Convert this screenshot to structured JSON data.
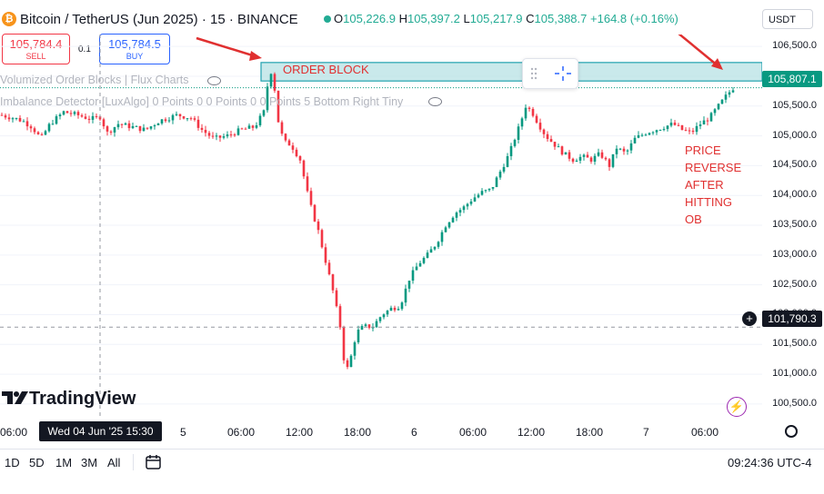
{
  "header": {
    "symbol": "Bitcoin / TetherUS (Jun 2025) · 15 · BINANCE",
    "coin_glyph": "₿",
    "ohlc": [
      {
        "k": "O",
        "v": "105,226.9"
      },
      {
        "k": "H",
        "v": "105,397.2"
      },
      {
        "k": "L",
        "v": "105,217.9"
      },
      {
        "k": "C",
        "v": "105,388.7"
      }
    ],
    "change": "+164.8 (+0.16%)",
    "currency": "USDT"
  },
  "trade": {
    "sell_price": "105,784.4",
    "sell_label": "SELL",
    "spread": "0.1",
    "buy_price": "105,784.5",
    "buy_label": "BUY"
  },
  "indicators": [
    {
      "label": "Volumized Order Blocks | Flux Charts"
    },
    {
      "label": "Imbalance Detector [LuxAlgo] 0 Points 0 0 Points 0 0 Points 5 Bottom Right Tiny"
    }
  ],
  "annotations": {
    "order_block": "ORDER BLOCK",
    "note": "PRICE\nREVERSE\nAFTER\nHITTING\nOB"
  },
  "price_scale": {
    "ticks": [
      "106,500.0",
      "106,000.0",
      "105,500.0",
      "105,000.0",
      "104,500.0",
      "104,000.0",
      "103,500.0",
      "103,000.0",
      "102,500.0",
      "102,000.0",
      "101,500.0",
      "101,000.0",
      "100,500.0"
    ],
    "last_price": "105,807.1",
    "crosshair_price": "101,790.3"
  },
  "time_scale": {
    "ticks": [
      "06:00",
      "5",
      "06:00",
      "12:00",
      "18:00",
      "6",
      "06:00",
      "12:00",
      "18:00",
      "7",
      "06:00"
    ],
    "crosshair_date": "Wed 04 Jun '25   15:30"
  },
  "branding": {
    "logo": "TradingView"
  },
  "bottom_bar": {
    "ranges": [
      "1D",
      "5D",
      "1M",
      "3M",
      "All"
    ],
    "clock": "09:24:36 UTC-4"
  },
  "colors": {
    "up": "#089981",
    "down": "#f23645",
    "order_block_fill": "#b2dfe3",
    "annotation": "#e03030"
  },
  "chart_data": {
    "type": "candlestick",
    "ylim": [
      100300,
      106700
    ],
    "price_ticks": [
      106500,
      106000,
      105500,
      105000,
      104500,
      104000,
      103500,
      103000,
      102500,
      102000,
      101500,
      101000,
      100500
    ],
    "order_block": {
      "low": 105920,
      "high": 106230
    },
    "last_price": 105807.1,
    "crosshair_price": 101790.3,
    "path": [
      [
        0,
        105350
      ],
      [
        15,
        105300
      ],
      [
        25,
        105250
      ],
      [
        35,
        105150
      ],
      [
        45,
        104950
      ],
      [
        55,
        105200
      ],
      [
        70,
        105400
      ],
      [
        85,
        105350
      ],
      [
        100,
        105280
      ],
      [
        110,
        105320
      ],
      [
        118,
        105050
      ],
      [
        130,
        105200
      ],
      [
        145,
        105150
      ],
      [
        160,
        105100
      ],
      [
        175,
        105250
      ],
      [
        195,
        105350
      ],
      [
        210,
        105300
      ],
      [
        222,
        105100
      ],
      [
        235,
        104950
      ],
      [
        250,
        105000
      ],
      [
        265,
        105100
      ],
      [
        280,
        105150
      ],
      [
        290,
        105400
      ],
      [
        296,
        106050
      ],
      [
        300,
        106100
      ],
      [
        305,
        105300
      ],
      [
        312,
        104900
      ],
      [
        320,
        104850
      ],
      [
        330,
        104600
      ],
      [
        340,
        103900
      ],
      [
        350,
        103400
      ],
      [
        358,
        102900
      ],
      [
        366,
        102400
      ],
      [
        374,
        101800
      ],
      [
        380,
        101000
      ],
      [
        386,
        101300
      ],
      [
        392,
        101700
      ],
      [
        400,
        101800
      ],
      [
        410,
        101800
      ],
      [
        420,
        102000
      ],
      [
        430,
        102100
      ],
      [
        440,
        102150
      ],
      [
        450,
        102600
      ],
      [
        460,
        102850
      ],
      [
        470,
        103000
      ],
      [
        480,
        103200
      ],
      [
        490,
        103500
      ],
      [
        500,
        103700
      ],
      [
        510,
        103800
      ],
      [
        520,
        103950
      ],
      [
        530,
        104050
      ],
      [
        540,
        104100
      ],
      [
        550,
        104400
      ],
      [
        560,
        104700
      ],
      [
        567,
        105000
      ],
      [
        572,
        105200
      ],
      [
        578,
        105500
      ],
      [
        585,
        105400
      ],
      [
        592,
        105200
      ],
      [
        600,
        105000
      ],
      [
        610,
        104850
      ],
      [
        620,
        104700
      ],
      [
        630,
        104600
      ],
      [
        640,
        104650
      ],
      [
        650,
        104600
      ],
      [
        660,
        104700
      ],
      [
        670,
        104500
      ],
      [
        678,
        104800
      ],
      [
        688,
        104700
      ],
      [
        698,
        104950
      ],
      [
        710,
        105050
      ],
      [
        720,
        105100
      ],
      [
        730,
        105150
      ],
      [
        740,
        105200
      ],
      [
        750,
        105100
      ],
      [
        760,
        105050
      ],
      [
        770,
        105200
      ],
      [
        780,
        105300
      ],
      [
        790,
        105500
      ],
      [
        800,
        105700
      ],
      [
        806,
        105800
      ]
    ]
  }
}
